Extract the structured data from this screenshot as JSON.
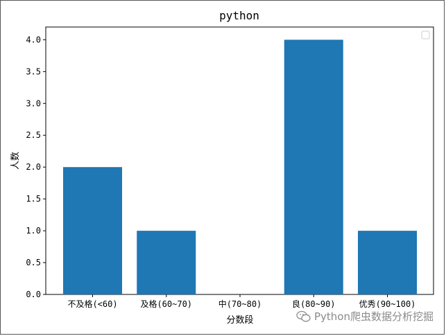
{
  "chart_data": {
    "type": "bar",
    "title": "python",
    "xlabel": "分数段",
    "ylabel": "人数",
    "categories": [
      "不及格(<60)",
      "及格(60~70)",
      "中(70~80)",
      "良(80~90)",
      "优秀(90~100)"
    ],
    "values": [
      2,
      1,
      0,
      4,
      1
    ],
    "ylim": [
      0,
      4.2
    ],
    "yticks": [
      "0.0",
      "0.5",
      "1.0",
      "1.5",
      "2.0",
      "2.5",
      "3.0",
      "3.5",
      "4.0"
    ],
    "bar_color": "#1f77b4",
    "grid": false,
    "legend": "upper right (empty)"
  },
  "watermark": {
    "text": "Python爬虫数据分析挖掘",
    "icon": "wechat-icon"
  }
}
